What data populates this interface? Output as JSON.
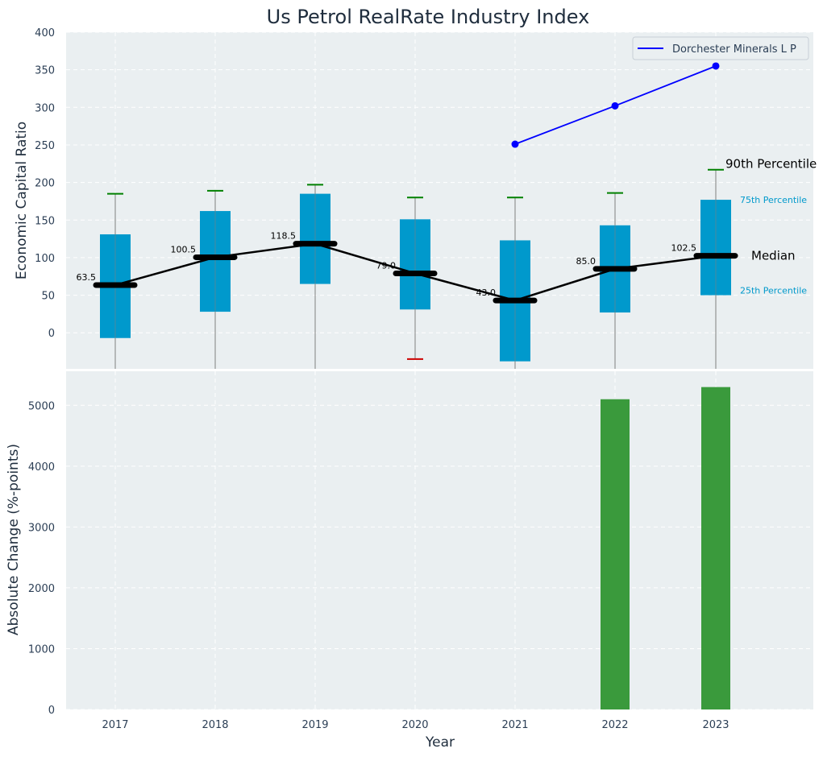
{
  "chart_data": {
    "type": "box+line+bar",
    "title": "Us Petrol RealRate Industry Index",
    "xlabel": "Year",
    "categories": [
      "2017",
      "2018",
      "2019",
      "2020",
      "2021",
      "2022",
      "2023"
    ],
    "top_panel": {
      "ylabel": "Economic Capital Ratio",
      "ylim": [
        -48,
        400
      ],
      "yticks": [
        "0",
        "50",
        "100",
        "150",
        "200",
        "250",
        "300",
        "350",
        "400"
      ],
      "grid": true,
      "boxes": [
        {
          "year": "2017",
          "q1": -7,
          "median": 63.5,
          "q3": 131,
          "whisker_high": 185,
          "whisker_low": -48,
          "median_label": "63.5"
        },
        {
          "year": "2018",
          "q1": 28,
          "median": 100.5,
          "q3": 162,
          "whisker_high": 189,
          "whisker_low": -48,
          "median_label": "100.5"
        },
        {
          "year": "2019",
          "q1": 65,
          "median": 118.5,
          "q3": 185,
          "whisker_high": 197,
          "whisker_low": -48,
          "median_label": "118.5"
        },
        {
          "year": "2020",
          "q1": 31,
          "median": 79.0,
          "q3": 151,
          "whisker_high": 180,
          "whisker_low": -35,
          "median_label": "79.0"
        },
        {
          "year": "2021",
          "q1": -38,
          "median": 43.0,
          "q3": 123,
          "whisker_high": 180,
          "whisker_low": -48,
          "median_label": "43.0"
        },
        {
          "year": "2022",
          "q1": 27,
          "median": 85.0,
          "q3": 143,
          "whisker_high": 186,
          "whisker_low": -48,
          "median_label": "85.0"
        },
        {
          "year": "2023",
          "q1": 50,
          "median": 102.5,
          "q3": 177,
          "whisker_high": 217,
          "whisker_low": -48,
          "median_label": "102.5"
        }
      ],
      "median_line": [
        63.5,
        100.5,
        118.5,
        79.0,
        43.0,
        85.0,
        102.5
      ],
      "company_series": {
        "name": "Dorchester Minerals L P",
        "x": [
          "2021",
          "2022",
          "2023"
        ],
        "values": [
          251,
          302,
          355
        ]
      },
      "annotations": {
        "p90": "90th Percentile",
        "p75": "75th Percentile",
        "median": "Median",
        "p25": "25th Percentile"
      },
      "legend_position": "top-right"
    },
    "bottom_panel": {
      "ylabel": "Absolute Change (%-points)",
      "ylim": [
        0,
        5560
      ],
      "yticks": [
        "0",
        "1000",
        "2000",
        "3000",
        "4000",
        "5000"
      ],
      "grid": true,
      "bars": [
        {
          "year": "2022",
          "value": 5100
        },
        {
          "year": "2023",
          "value": 5300
        }
      ]
    },
    "colors": {
      "panel_bg": "#eaeff1",
      "grid": "#ffffff",
      "box": "#0099cc",
      "whisker": "#808080",
      "cap_high": "#008000",
      "cap_low_outlier": "#cc0000",
      "median_bar": "#000000",
      "median_line": "#000000",
      "company_line": "#0000ff",
      "bar": "#3a9a3c",
      "percentile_text": "#0099cc"
    }
  }
}
